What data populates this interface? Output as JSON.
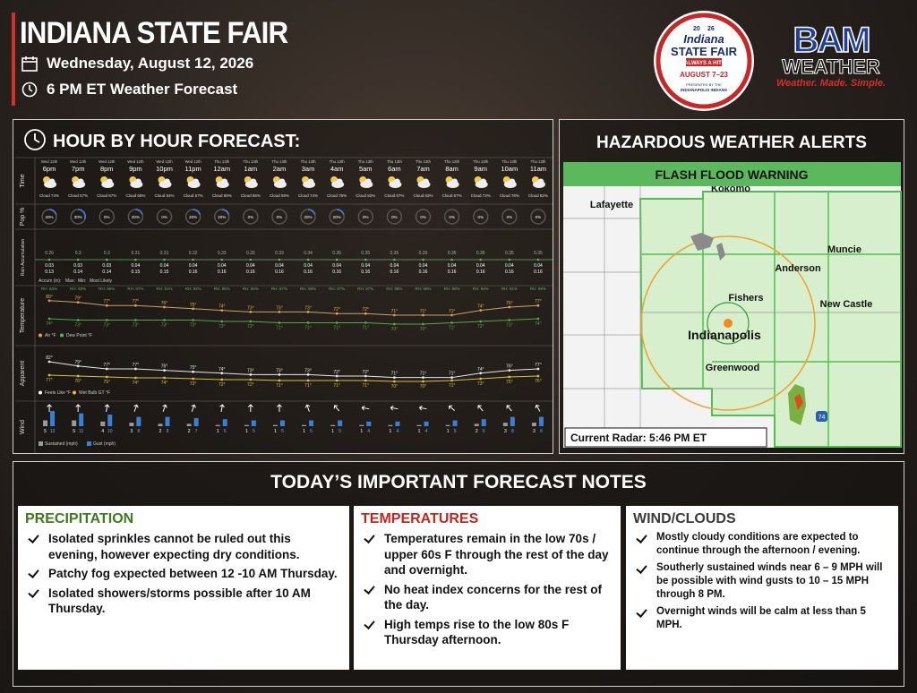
{
  "header": {
    "title": "INDIANA STATE FAIR",
    "date": "Wednesday, August 12, 2026",
    "subtitle": "6 PM ET Weather Forecast"
  },
  "fair_logo": {
    "year_left": "20",
    "year_right": "26",
    "name_top": "Indiana",
    "name_bottom": "STATE FAIR",
    "tagline": "ALWAYS A HIT!",
    "dates": "AUGUST 7–23",
    "presented": "PRESENTED BY THE",
    "sponsor": "INDIANAPOLIS INDIANS"
  },
  "bam_logo": {
    "name": "BAM",
    "sub": "WEATHER",
    "tagline": "Weather. Made. Simple."
  },
  "hourly": {
    "title": "HOUR BY HOUR FORECAST:",
    "row_labels": {
      "time": "Time",
      "pop": "Pop %",
      "rain": "Rain Accumulation",
      "temperature": "Temperature",
      "apparent": "Apparent",
      "wind": "Wind"
    },
    "rain_legend": {
      "label": "Accum (in):",
      "max": "Max:",
      "min": "Min:",
      "likely": "Most Likely"
    },
    "temp_legend": {
      "air": "Air °F",
      "dew": "Dew Point °F"
    },
    "apparent_legend": {
      "feels": "Feels Like °F",
      "wetbulb": "Wet Bulb GT °F"
    },
    "wind_legend": {
      "sustained": "Sustained (mph)",
      "gust": "Gust (mph)"
    },
    "hours": [
      {
        "date": "Wed 12th",
        "time": "6pm",
        "cloud": "Cloud 74%",
        "pop": "20%",
        "rain_likely": "0.26",
        "rain_max": "0.03",
        "rain_min": "0.13",
        "rh": "RH: 83%",
        "air": "80°",
        "dew": "74°",
        "feels": "82°",
        "wetbulb": "77°",
        "sustained": 5,
        "gust": 13
      },
      {
        "date": "Wed 12th",
        "time": "7pm",
        "cloud": "Cloud 57%",
        "pop": "30%",
        "rain_likely": "0.3",
        "rain_max": "0.03",
        "rain_min": "0.14",
        "rh": "RH: 83%",
        "air": "79°",
        "dew": "73°",
        "feels": "79°",
        "wetbulb": "76°",
        "sustained": 5,
        "gust": 11
      },
      {
        "date": "Wed 12th",
        "time": "8pm",
        "cloud": "Cloud 87%",
        "pop": "0%",
        "rain_likely": "0.3",
        "rain_max": "0.03",
        "rain_min": "0.14",
        "rh": "RH: 86%",
        "air": "77°",
        "dew": "73°",
        "feels": "77°",
        "wetbulb": "75°",
        "sustained": 4,
        "gust": 10
      },
      {
        "date": "Wed 12th",
        "time": "9pm",
        "cloud": "Cloud 68%",
        "pop": "20%",
        "rain_likely": "0.31",
        "rain_max": "0.04",
        "rain_min": "0.15",
        "rh": "RH: 87%",
        "air": "77°",
        "dew": "73°",
        "feels": "77°",
        "wetbulb": "74°",
        "sustained": 3,
        "gust": 8
      },
      {
        "date": "Wed 12th",
        "time": "10pm",
        "cloud": "Cloud 54%",
        "pop": "0%",
        "rain_likely": "0.31",
        "rain_max": "0.04",
        "rain_min": "0.15",
        "rh": "RH: 91%",
        "air": "76°",
        "dew": "73°",
        "feels": "76°",
        "wetbulb": "74°",
        "sustained": 2,
        "gust": 8
      },
      {
        "date": "Wed 12th",
        "time": "11pm",
        "cloud": "Cloud 57%",
        "pop": "20%",
        "rain_likely": "0.32",
        "rain_max": "0.04",
        "rain_min": "0.16",
        "rh": "RH: 92%",
        "air": "75°",
        "dew": "73°",
        "feels": "75°",
        "wetbulb": "73°",
        "sustained": 2,
        "gust": 7
      },
      {
        "date": "Thu 13th",
        "time": "12am",
        "cloud": "Cloud 65%",
        "pop": "20%",
        "rain_likely": "0.33",
        "rain_max": "0.04",
        "rain_min": "0.16",
        "rh": "RH: 95%",
        "air": "74°",
        "dew": "72°",
        "feels": "74°",
        "wetbulb": "72°",
        "sustained": 1,
        "gust": 6
      },
      {
        "date": "Thu 13th",
        "time": "1am",
        "cloud": "Cloud 65%",
        "pop": "0%",
        "rain_likely": "0.33",
        "rain_max": "0.04",
        "rain_min": "0.16",
        "rh": "RH: 96%",
        "air": "73°",
        "dew": "72°",
        "feels": "73°",
        "wetbulb": "72°",
        "sustained": 1,
        "gust": 5
      },
      {
        "date": "Thu 13th",
        "time": "2am",
        "cloud": "Cloud 59%",
        "pop": "0%",
        "rain_likely": "0.33",
        "rain_max": "0.04",
        "rain_min": "0.16",
        "rh": "RH: 97%",
        "air": "73°",
        "dew": "71°",
        "feels": "73°",
        "wetbulb": "71°",
        "sustained": 1,
        "gust": 5
      },
      {
        "date": "Thu 13th",
        "time": "3am",
        "cloud": "Cloud 74%",
        "pop": "20%",
        "rain_likely": "0.34",
        "rain_max": "0.04",
        "rain_min": "0.16",
        "rh": "RH: 98%",
        "air": "73°",
        "dew": "71°",
        "feels": "73°",
        "wetbulb": "71°",
        "sustained": 1,
        "gust": 5
      },
      {
        "date": "Thu 13th",
        "time": "4am",
        "cloud": "Cloud 76%",
        "pop": "20%",
        "rain_likely": "0.35",
        "rain_max": "0.04",
        "rain_min": "0.16",
        "rh": "RH: 97%",
        "air": "72°",
        "dew": "71°",
        "feels": "72°",
        "wetbulb": "71°",
        "sustained": 1,
        "gust": 5
      },
      {
        "date": "Thu 13th",
        "time": "5am",
        "cloud": "Cloud 82%",
        "pop": "0%",
        "rain_likely": "0.35",
        "rain_max": "0.04",
        "rain_min": "0.16",
        "rh": "RH: 97%",
        "air": "72°",
        "dew": "71°",
        "feels": "72°",
        "wetbulb": "71°",
        "sustained": 1,
        "gust": 4
      },
      {
        "date": "Thu 13th",
        "time": "6am",
        "cloud": "Cloud 67%",
        "pop": "0%",
        "rain_likely": "0.35",
        "rain_max": "0.04",
        "rain_min": "0.16",
        "rh": "RH: 98%",
        "air": "71°",
        "dew": "70°",
        "feels": "71°",
        "wetbulb": "70°",
        "sustained": 1,
        "gust": 4
      },
      {
        "date": "Thu 13th",
        "time": "7am",
        "cloud": "Cloud 63%",
        "pop": "0%",
        "rain_likely": "0.35",
        "rain_max": "0.04",
        "rain_min": "0.16",
        "rh": "RH: 98%",
        "air": "71°",
        "dew": "70°",
        "feels": "71°",
        "wetbulb": "70°",
        "sustained": 1,
        "gust": 4
      },
      {
        "date": "Thu 13th",
        "time": "8am",
        "cloud": "Cloud 67%",
        "pop": "0%",
        "rain_likely": "0.35",
        "rain_max": "0.04",
        "rain_min": "0.16",
        "rh": "RH: 98%",
        "air": "71°",
        "dew": "71°",
        "feels": "71°",
        "wetbulb": "71°",
        "sustained": 1,
        "gust": 5
      },
      {
        "date": "Thu 13th",
        "time": "9am",
        "cloud": "Cloud 73%",
        "pop": "0%",
        "rain_likely": "0.35",
        "rain_max": "0.04",
        "rain_min": "0.16",
        "rh": "RH: 94%",
        "air": "74°",
        "dew": "72°",
        "feels": "74°",
        "wetbulb": "73°",
        "sustained": 2,
        "gust": 6
      },
      {
        "date": "Thu 13th",
        "time": "10am",
        "cloud": "Cloud 78%",
        "pop": "0%",
        "rain_likely": "0.35",
        "rain_max": "0.04",
        "rain_min": "0.16",
        "rh": "RH: 91%",
        "air": "76°",
        "dew": "73°",
        "feels": "76°",
        "wetbulb": "75°",
        "sustained": 3,
        "gust": 8
      },
      {
        "date": "Thu 13th",
        "time": "11am",
        "cloud": "Cloud 82%",
        "pop": "0%",
        "rain_likely": "0.35",
        "rain_max": "0.04",
        "rain_min": "0.16",
        "rh": "RH: 89%",
        "air": "77°",
        "dew": "74°",
        "feels": "77°",
        "wetbulb": "76°",
        "sustained": 3,
        "gust": 8
      }
    ]
  },
  "alerts": {
    "title": "HAZARDOUS WEATHER ALERTS",
    "warning": "FLASH FLOOD WARNING",
    "radar": "Current Radar: 5:46 PM ET",
    "places": [
      "Lafayette",
      "Kokomo",
      "Muncie",
      "Anderson",
      "Fishers",
      "New Castle",
      "Indianapolis",
      "Greenwood"
    ],
    "highway": "74"
  },
  "notes": {
    "title": "TODAY’S IMPORTANT FORECAST NOTES",
    "sections": [
      {
        "heading": "PRECIPITATION",
        "items": [
          "Isolated sprinkles cannot be ruled out this evening, however expecting dry conditions.",
          "Patchy fog expected between 12 -10 AM Thursday.",
          "Isolated showers/storms possible after 10 AM Thursday."
        ]
      },
      {
        "heading": "TEMPERATURES",
        "items": [
          "Temperatures remain in the low 70s / upper 60s F through the rest of the day and overnight.",
          "No heat index concerns for the rest of the day.",
          "High temps rise to the low 80s F Thursday afternoon."
        ]
      },
      {
        "heading": "WIND/CLOUDS",
        "items": [
          "Mostly cloudy conditions are expected to continue through the afternoon / evening.",
          "Southerly sustained winds near 6 – 9 MPH will be possible with wind gusts to 10 – 15 MPH through 8 PM.",
          "Overnight winds will be calm at less than 5 MPH."
        ]
      }
    ]
  }
}
